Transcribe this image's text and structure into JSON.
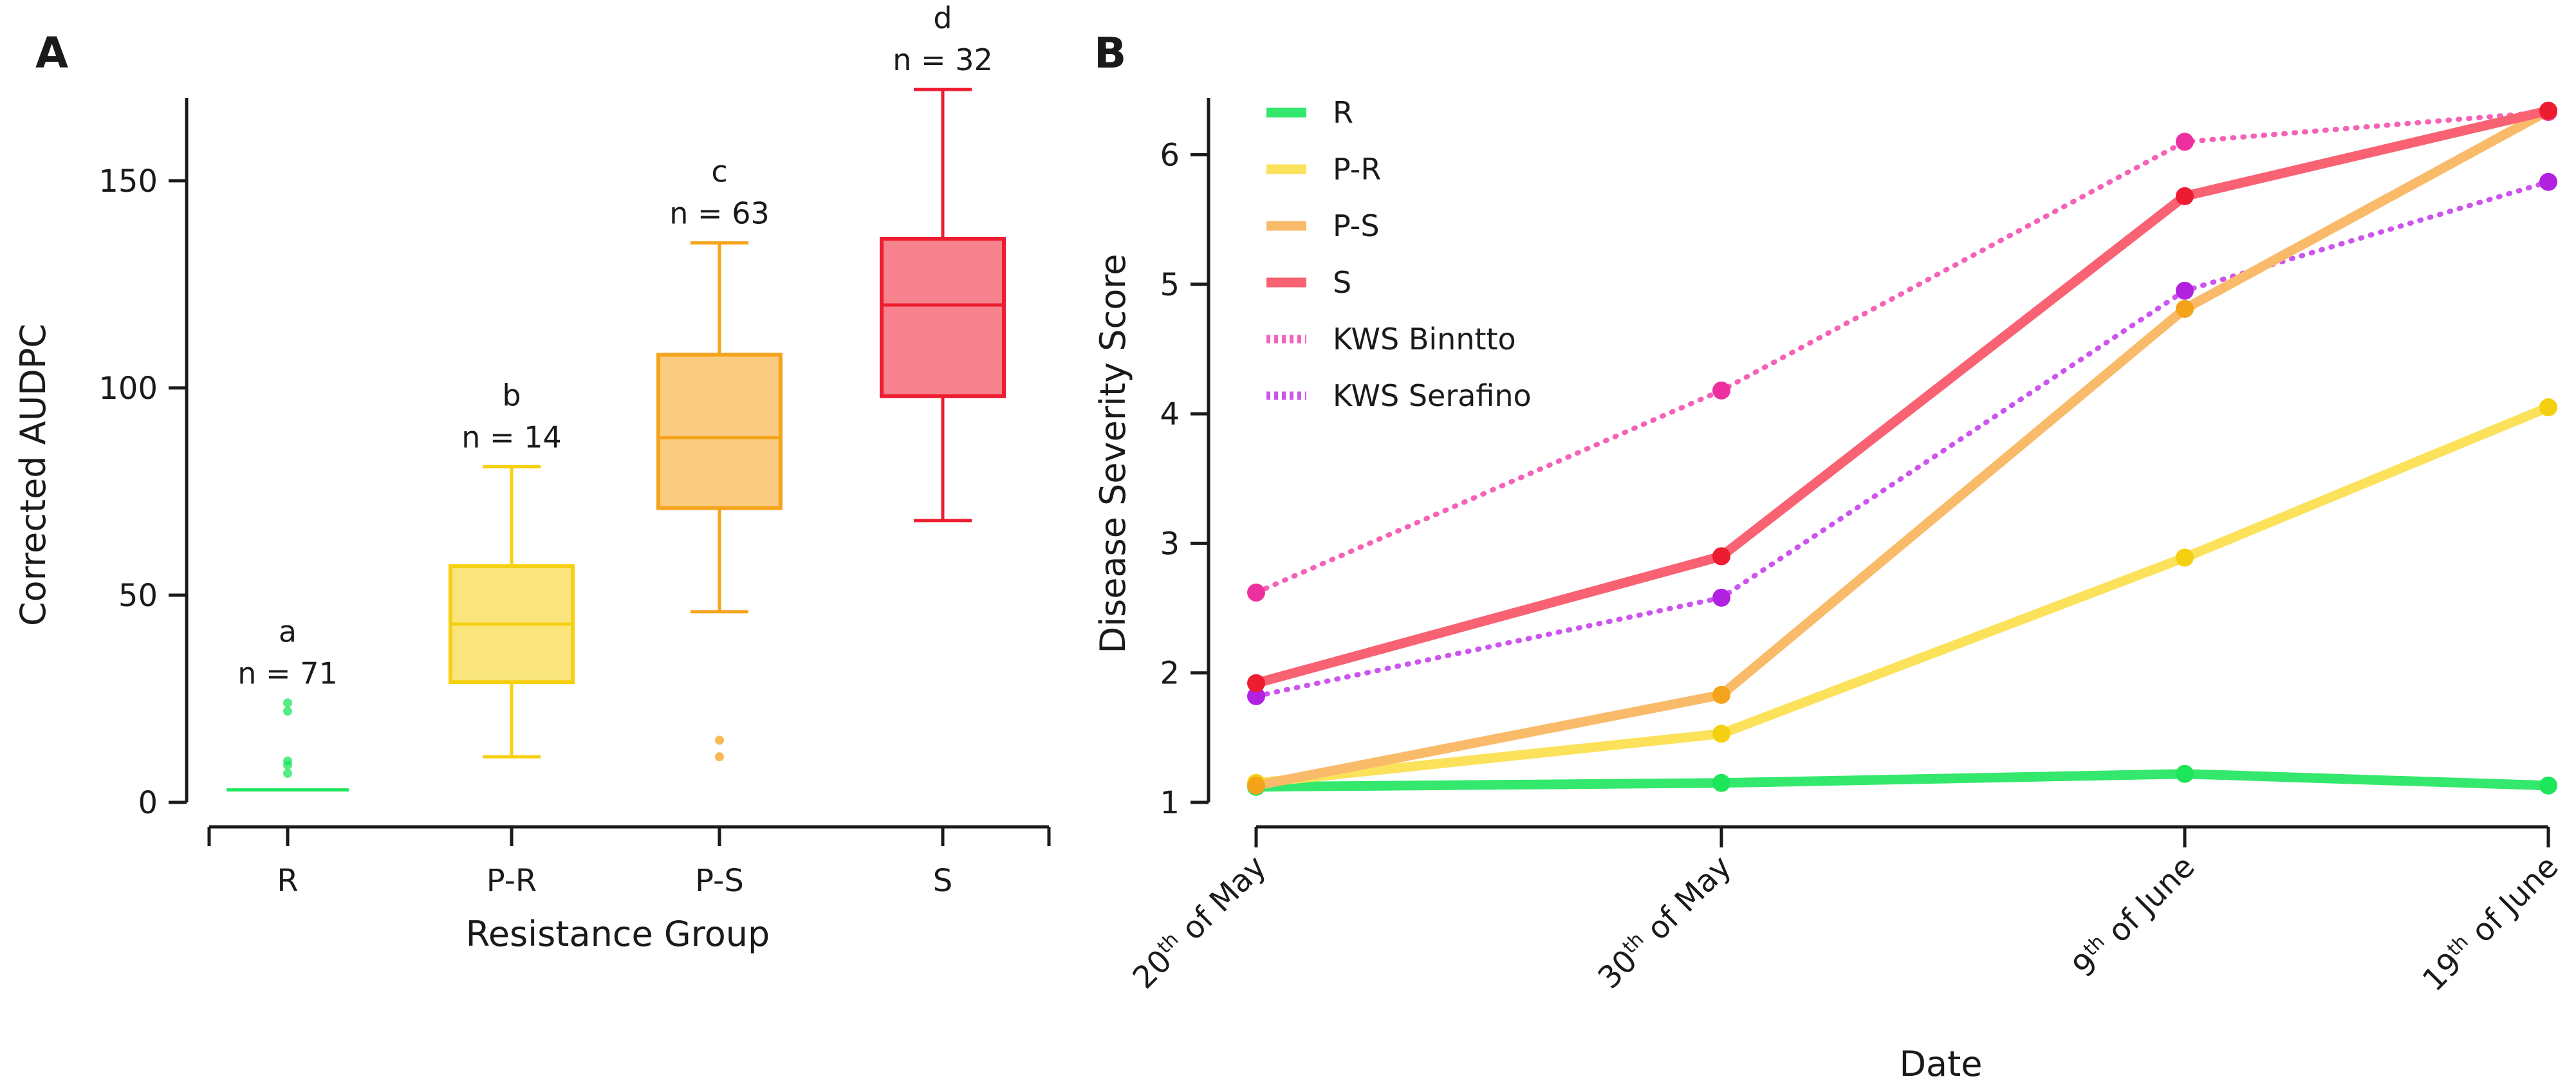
{
  "chart_data": [
    {
      "panel_label": "A",
      "type": "boxplot",
      "xlabel": "Resistance Group",
      "ylabel": "Corrected AUDPC",
      "ylim": [
        0,
        170
      ],
      "yticks": [
        0,
        50,
        100,
        150
      ],
      "groups": [
        {
          "name": "R",
          "letter": "a",
          "n_label": "n = 71",
          "color": "#1ee65a",
          "min": 3,
          "q1": 3,
          "median": 3,
          "q3": 3,
          "max": 3,
          "outliers": [
            7,
            9,
            10,
            22,
            24
          ]
        },
        {
          "name": "P-R",
          "letter": "b",
          "n_label": "n = 14",
          "color": "#f5d010",
          "min": 11,
          "q1": 29,
          "median": 43,
          "q3": 57,
          "max": 81,
          "outliers": []
        },
        {
          "name": "P-S",
          "letter": "c",
          "n_label": "n = 63",
          "color": "#f5a31a",
          "min": 46,
          "q1": 71,
          "median": 88,
          "q3": 108,
          "max": 135,
          "outliers": [
            11,
            15
          ]
        },
        {
          "name": "S",
          "letter": "d",
          "n_label": "n = 32",
          "color": "#ee1c30",
          "min": 68,
          "q1": 98,
          "median": 120,
          "q3": 136,
          "max": 172,
          "outliers": []
        }
      ]
    },
    {
      "panel_label": "B",
      "type": "line",
      "xlabel": "Date",
      "ylabel": "Disease Severity Score",
      "ylim": [
        1,
        6.35
      ],
      "yticks": [
        1,
        2,
        3,
        4,
        5,
        6
      ],
      "dates": [
        {
          "day": "20",
          "suffix": "th",
          "rest": " of May"
        },
        {
          "day": "30",
          "suffix": "th",
          "rest": " of May"
        },
        {
          "day": "9",
          "suffix": "th",
          "rest": " of June"
        },
        {
          "day": "19",
          "suffix": "th",
          "rest": " of June"
        }
      ],
      "series": [
        {
          "name": "R",
          "style": "solid",
          "line_color": "#33e86c",
          "point_color": "#1ee65a",
          "values": [
            1.12,
            1.15,
            1.22,
            1.13
          ]
        },
        {
          "name": "P-R",
          "style": "solid",
          "line_color": "#fbe25a",
          "point_color": "#f5d010",
          "values": [
            1.15,
            1.53,
            2.89,
            4.05
          ]
        },
        {
          "name": "P-S",
          "style": "solid",
          "line_color": "#f9bb6a",
          "point_color": "#f5a31a",
          "values": [
            1.13,
            1.83,
            4.81,
            6.34
          ]
        },
        {
          "name": "S",
          "style": "solid",
          "line_color": "#f86272",
          "point_color": "#ee1c30",
          "values": [
            1.92,
            2.9,
            5.68,
            6.34
          ]
        },
        {
          "name": "KWS Binntto",
          "style": "dotted",
          "line_color": "#f463b8",
          "point_color": "#ee2fa0",
          "values": [
            2.62,
            4.18,
            6.1,
            6.33
          ]
        },
        {
          "name": "KWS Serafino",
          "style": "dotted",
          "line_color": "#cc55ee",
          "point_color": "#b221e0",
          "values": [
            1.82,
            2.58,
            4.95,
            5.79
          ]
        }
      ]
    }
  ]
}
